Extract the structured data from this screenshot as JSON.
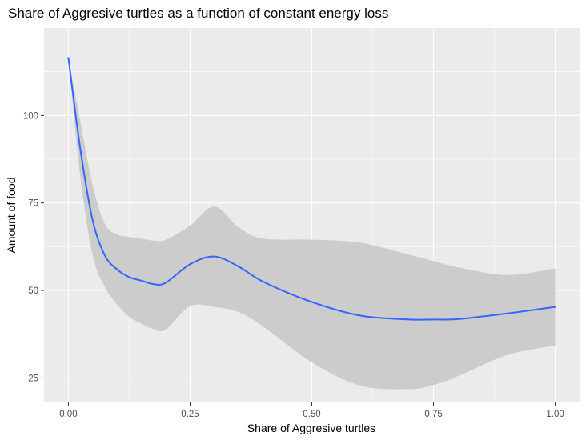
{
  "chart_data": {
    "type": "line",
    "title": "Share of Aggresive turtles as a function of constant energy loss",
    "xlabel": "Share of Aggresive turtles",
    "ylabel": "Amount of food",
    "xlim": [
      -0.05,
      1.05
    ],
    "ylim": [
      18,
      125
    ],
    "x_ticks": [
      0.0,
      0.25,
      0.5,
      0.75,
      1.0
    ],
    "x_tick_labels": [
      "0.00",
      "0.25",
      "0.50",
      "0.75",
      "1.00"
    ],
    "y_ticks": [
      25,
      50,
      75,
      100
    ],
    "y_tick_labels": [
      "25",
      "50",
      "75",
      "100"
    ],
    "grid": true,
    "colors": {
      "panel_background": "#ebebeb",
      "grid_major": "#ffffff",
      "line": "#3366ff",
      "ribbon": "#cccccc"
    },
    "series": [
      {
        "type": "smooth",
        "x": [
          0.0,
          0.025,
          0.05,
          0.075,
          0.1,
          0.125,
          0.15,
          0.175,
          0.2,
          0.25,
          0.3,
          0.35,
          0.4,
          0.5,
          0.6,
          0.7,
          0.75,
          0.8,
          0.9,
          1.0
        ],
        "y": [
          116.5,
          90,
          70,
          60,
          56,
          53.8,
          52.8,
          51.8,
          52.2,
          57.5,
          59.7,
          56.8,
          52.5,
          46.7,
          42.8,
          41.7,
          41.7,
          41.8,
          43.4,
          45.3
        ],
        "ymin": [
          116.5,
          82,
          60,
          51,
          46,
          42.5,
          40.5,
          39,
          38.8,
          45.5,
          45.3,
          43.8,
          39.7,
          29.5,
          22.8,
          21.8,
          23,
          25.5,
          31.5,
          34.3
        ],
        "ymax": [
          116.5,
          98,
          80,
          69,
          66,
          65.3,
          64.8,
          64.2,
          64.5,
          68.5,
          74,
          68,
          64.8,
          64.5,
          63.6,
          60.2,
          58.4,
          56.6,
          54.4,
          56.3
        ]
      }
    ]
  }
}
